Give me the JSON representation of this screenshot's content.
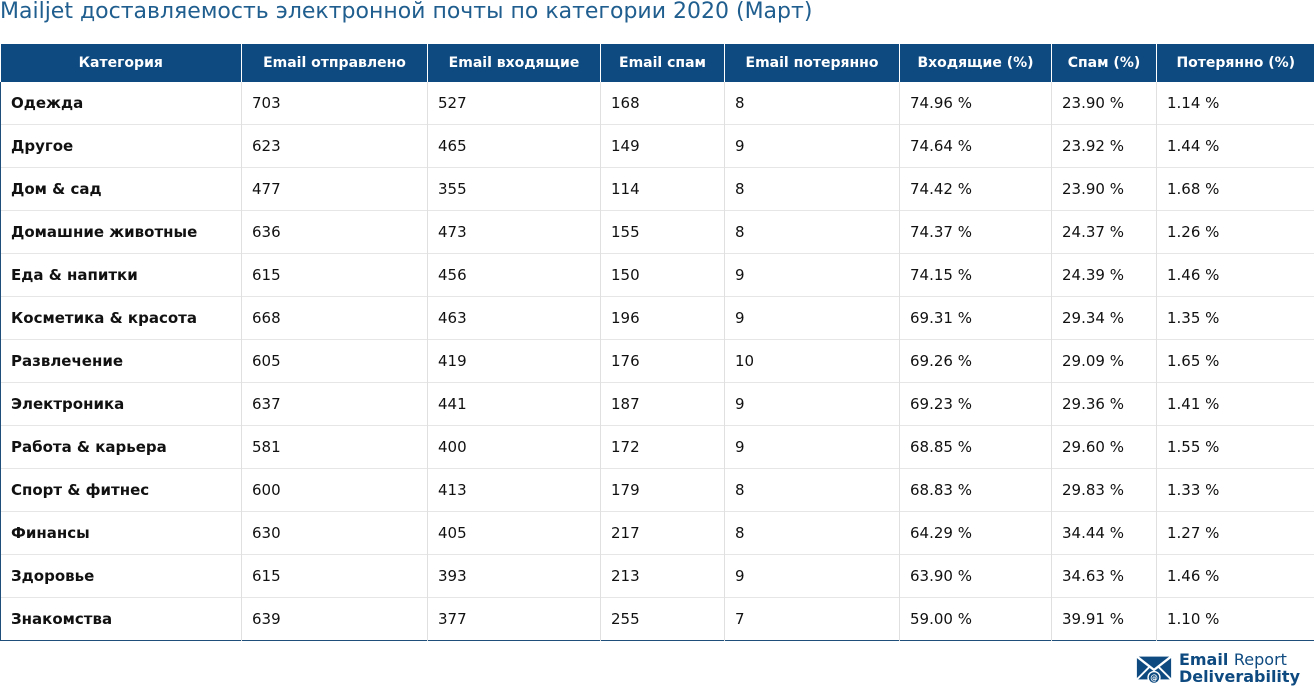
{
  "title": "Mailjet доставляемость электронной почты по категории 2020 (Март)",
  "table": {
    "headers": [
      "Категория",
      "Email отправлено",
      "Email входящие",
      "Email спам",
      "Email потерянно",
      "Входящие (%)",
      "Спам (%)",
      "Потерянно (%)"
    ],
    "rows": [
      [
        "Одежда",
        "703",
        "527",
        "168",
        "8",
        "74.96 %",
        "23.90 %",
        "1.14 %"
      ],
      [
        "Другое",
        "623",
        "465",
        "149",
        "9",
        "74.64 %",
        "23.92 %",
        "1.44 %"
      ],
      [
        "Дом & сад",
        "477",
        "355",
        "114",
        "8",
        "74.42 %",
        "23.90 %",
        "1.68 %"
      ],
      [
        "Домашние животные",
        "636",
        "473",
        "155",
        "8",
        "74.37 %",
        "24.37 %",
        "1.26 %"
      ],
      [
        "Еда & напитки",
        "615",
        "456",
        "150",
        "9",
        "74.15 %",
        "24.39 %",
        "1.46 %"
      ],
      [
        "Косметика & красота",
        "668",
        "463",
        "196",
        "9",
        "69.31 %",
        "29.34 %",
        "1.35 %"
      ],
      [
        "Развлечение",
        "605",
        "419",
        "176",
        "10",
        "69.26 %",
        "29.09 %",
        "1.65 %"
      ],
      [
        "Электроника",
        "637",
        "441",
        "187",
        "9",
        "69.23 %",
        "29.36 %",
        "1.41 %"
      ],
      [
        "Работа & карьера",
        "581",
        "400",
        "172",
        "9",
        "68.85 %",
        "29.60 %",
        "1.55 %"
      ],
      [
        "Спорт & фитнес",
        "600",
        "413",
        "179",
        "8",
        "68.83 %",
        "29.83 %",
        "1.33 %"
      ],
      [
        "Финансы",
        "630",
        "405",
        "217",
        "8",
        "64.29 %",
        "34.44 %",
        "1.27 %"
      ],
      [
        "Здоровье",
        "615",
        "393",
        "213",
        "9",
        "63.90 %",
        "34.63 %",
        "1.46 %"
      ],
      [
        "Знакомства",
        "639",
        "377",
        "255",
        "7",
        "59.00 %",
        "39.91 %",
        "1.10 %"
      ]
    ]
  },
  "logo": {
    "line1_bold": "Email",
    "line1_light": "Report",
    "line2": "Deliverability",
    "icon": "envelope-at-icon",
    "color": "#0e4a80"
  },
  "colors": {
    "header_bg": "#0e4a80",
    "title": "#1f5e8e"
  }
}
